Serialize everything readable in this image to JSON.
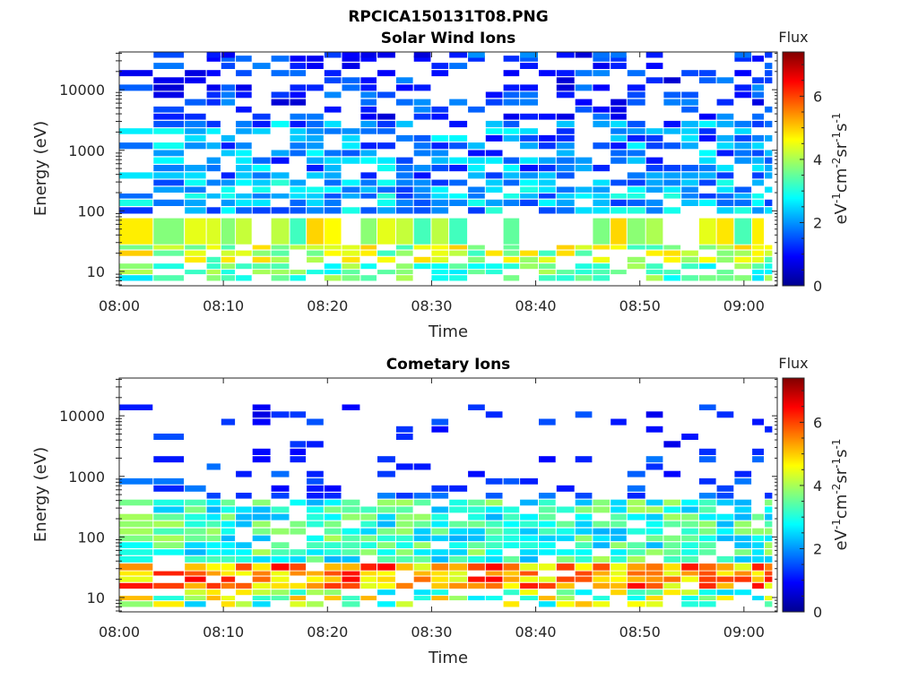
{
  "figure": {
    "title": "RPCICA150131T08.PNG"
  },
  "colors": {
    "colormap": "jet",
    "background": "#ffffff",
    "axes": "#262626"
  },
  "chart_data": [
    {
      "type": "heatmap",
      "title": "Solar Wind Ions",
      "xlabel": "Time",
      "ylabel": "Energy (eV)",
      "x_ticks": [
        "08:00",
        "08:10",
        "08:20",
        "08:30",
        "08:40",
        "08:50",
        "09:00"
      ],
      "x_tick_minutes": [
        0,
        10,
        20,
        30,
        40,
        50,
        60
      ],
      "xlim_minutes": [
        0,
        63.2
      ],
      "y_ticks": [
        "10",
        "100",
        "1000",
        "10000"
      ],
      "y_tick_values": [
        10,
        100,
        1000,
        10000
      ],
      "ylim": [
        5.8,
        42000
      ],
      "yscale": "log",
      "colorbar": {
        "title": "Flux",
        "label": "eV-1cm-2sr-1s-1",
        "ticks": [
          "0",
          "2",
          "4",
          "6"
        ],
        "tick_values": [
          0,
          2,
          4,
          6
        ],
        "range": [
          0,
          7.4
        ]
      },
      "time_column_starts_min": [
        0.0,
        3.3,
        6.3,
        8.4,
        9.8,
        11.2,
        12.8,
        14.6,
        16.4,
        18.0,
        19.7,
        21.4,
        23.2,
        24.8,
        26.6,
        28.3,
        30.0,
        31.7,
        33.5,
        35.2,
        36.9,
        38.5,
        40.3,
        42.0,
        43.8,
        45.5,
        47.2,
        48.8,
        50.6,
        52.3,
        54.0,
        55.7,
        57.4,
        59.1,
        60.8,
        62.0
      ],
      "row_energies_eV": [
        7,
        9,
        11,
        14,
        18,
        23,
        28,
        90,
        120,
        160,
        200,
        260,
        340,
        450,
        600,
        800,
        1050,
        1400,
        1850,
        2400,
        3200,
        4200,
        5500,
        7300,
        9600,
        12700,
        16700,
        22000,
        29000,
        38000
      ],
      "flux_range": [
        0,
        7.4
      ]
    },
    {
      "type": "heatmap",
      "title": "Cometary Ions",
      "xlabel": "Time",
      "ylabel": "Energy (eV)",
      "x_ticks": [
        "08:00",
        "08:10",
        "08:20",
        "08:30",
        "08:40",
        "08:50",
        "09:00"
      ],
      "x_tick_minutes": [
        0,
        10,
        20,
        30,
        40,
        50,
        60
      ],
      "xlim_minutes": [
        0,
        63.2
      ],
      "y_ticks": [
        "10",
        "100",
        "1000",
        "10000"
      ],
      "y_tick_values": [
        10,
        100,
        1000,
        10000
      ],
      "ylim": [
        5.8,
        42000
      ],
      "yscale": "log",
      "colorbar": {
        "title": "Flux",
        "label": "eV-1cm-2sr-1s-1",
        "ticks": [
          "0",
          "2",
          "4",
          "6"
        ],
        "tick_values": [
          0,
          2,
          4,
          6
        ],
        "range": [
          0,
          7.4
        ]
      },
      "time_column_starts_min": [
        0.0,
        3.3,
        6.3,
        8.4,
        9.8,
        11.2,
        12.8,
        14.6,
        16.4,
        18.0,
        19.7,
        21.4,
        23.2,
        24.8,
        26.6,
        28.3,
        30.0,
        31.7,
        33.5,
        35.2,
        36.9,
        38.5,
        40.3,
        42.0,
        43.8,
        45.5,
        47.2,
        48.8,
        50.6,
        52.3,
        54.0,
        55.7,
        57.4,
        59.1,
        60.8,
        62.0
      ],
      "row_energies_eV": [
        7,
        9,
        11,
        14,
        18,
        23,
        28,
        38,
        50,
        65,
        85,
        110,
        145,
        190,
        250,
        330,
        430,
        560,
        740,
        970,
        1280,
        1700,
        2250,
        3000,
        4000,
        5300,
        7000,
        9300,
        12300
      ],
      "flux_range": [
        0,
        7.4
      ]
    }
  ]
}
